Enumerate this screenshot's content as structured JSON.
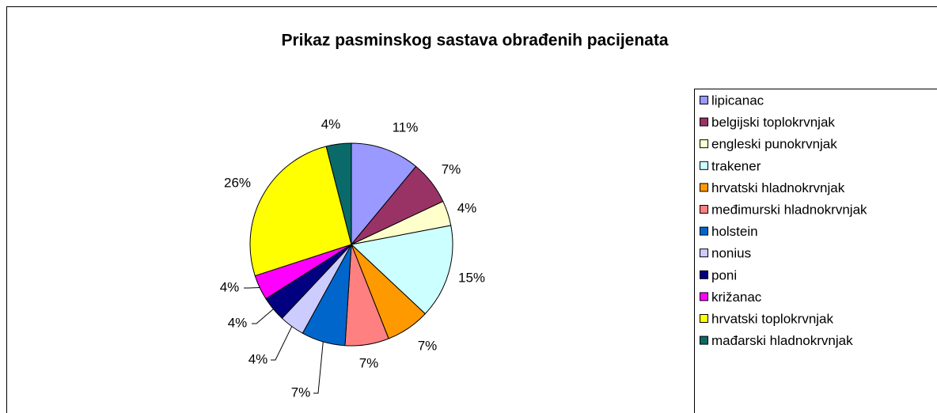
{
  "chart_data": {
    "type": "pie",
    "title": "Prikaz pasminskog sastava obrađenih pacijenata",
    "categories": [
      "lipicanac",
      "belgijski toplokrvnjak",
      "engleski punokrvnjak",
      "trakener",
      "hrvatski hladnokrvnjak",
      "međimurski hladnokrvnjak",
      "holstein",
      "nonius",
      "poni",
      "križanac",
      "hrvatski toplokrvnjak",
      "mađarski hladnokrvnjak"
    ],
    "values": [
      11,
      7,
      4,
      15,
      7,
      7,
      7,
      4,
      4,
      4,
      26,
      4
    ],
    "value_labels": [
      "11%",
      "7%",
      "4%",
      "15%",
      "7%",
      "7%",
      "7%",
      "4%",
      "4%",
      "4%",
      "26%",
      "4%"
    ],
    "colors": [
      "#9999ff",
      "#993366",
      "#ffffcc",
      "#ccffff",
      "#ff9900",
      "#ff8080",
      "#0066cc",
      "#ccccff",
      "#000080",
      "#ff00ff",
      "#ffff00",
      "#0a6a6a"
    ],
    "legend": "right"
  }
}
